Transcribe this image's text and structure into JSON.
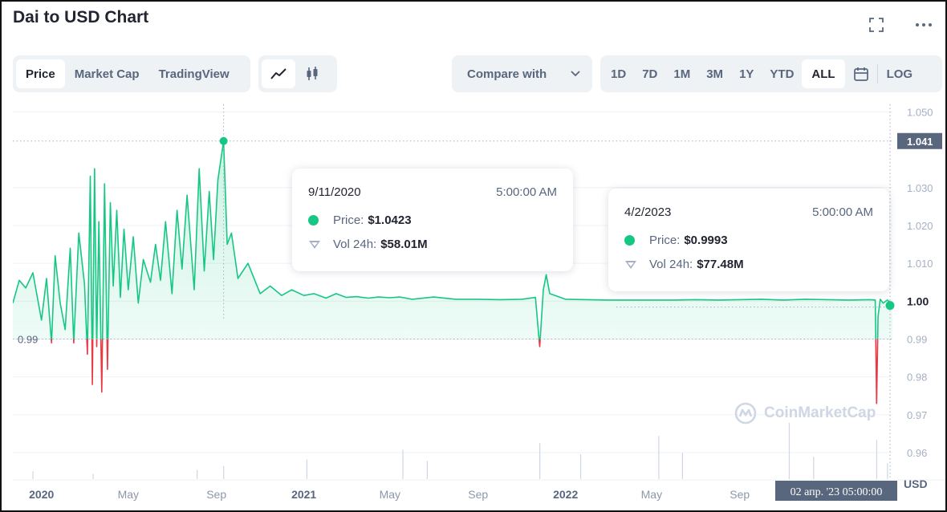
{
  "header": {
    "title": "Dai to USD Chart"
  },
  "icons": {
    "fullscreen": "fullscreen-icon",
    "more": "more-options-icon",
    "line": "line-chart-icon",
    "candle": "candlestick-icon",
    "calendar": "calendar-icon",
    "chevron": "chevron-down-icon",
    "watermark": "coinmarketcap-logo-icon"
  },
  "view_tabs": [
    {
      "label": "Price",
      "active": true
    },
    {
      "label": "Market Cap",
      "active": false
    },
    {
      "label": "TradingView",
      "active": false
    }
  ],
  "compare": {
    "label": "Compare with"
  },
  "ranges": [
    {
      "label": "1D",
      "active": false
    },
    {
      "label": "7D",
      "active": false
    },
    {
      "label": "1M",
      "active": false
    },
    {
      "label": "3M",
      "active": false
    },
    {
      "label": "1Y",
      "active": false
    },
    {
      "label": "YTD",
      "active": false
    },
    {
      "label": "ALL",
      "active": true
    }
  ],
  "log_label": "LOG",
  "tooltips": [
    {
      "date": "9/11/2020",
      "time": "5:00:00 AM",
      "price_label": "Price:",
      "price": "$1.0423",
      "vol_label": "Vol 24h:",
      "vol": "$58.01M"
    },
    {
      "date": "4/2/2023",
      "time": "5:00:00 AM",
      "price_label": "Price:",
      "price": "$0.9993",
      "vol_label": "Vol 24h:",
      "vol": "$77.48M"
    }
  ],
  "watermark": "CoinMarketCap",
  "colors": {
    "up": "#16c784",
    "down": "#ea3943",
    "axis_text": "#58667e",
    "label_bg": "#58667e"
  },
  "chart_data": {
    "type": "area",
    "baseline": 0.99,
    "baseline_label": "0.99",
    "ylim": [
      0.953,
      1.052
    ],
    "y_ticks": [
      "1.050",
      "1.030",
      "1.020",
      "1.010",
      "1.000",
      "0.99",
      "0.98",
      "0.97",
      "0.96"
    ],
    "y_tick_values": [
      1.05,
      1.03,
      1.02,
      1.01,
      1.0,
      0.99,
      0.98,
      0.97,
      0.96
    ],
    "ylabel": "USD",
    "x_tick_labels": [
      {
        "label": "2020",
        "x": "2020-01-01",
        "bold": true
      },
      {
        "label": "May",
        "x": "2020-05-01",
        "bold": false
      },
      {
        "label": "Sep",
        "x": "2020-09-01",
        "bold": false
      },
      {
        "label": "2021",
        "x": "2021-01-01",
        "bold": true
      },
      {
        "label": "May",
        "x": "2021-05-01",
        "bold": false
      },
      {
        "label": "Sep",
        "x": "2021-09-01",
        "bold": false
      },
      {
        "label": "2022",
        "x": "2022-01-01",
        "bold": true
      },
      {
        "label": "May",
        "x": "2022-05-01",
        "bold": false
      },
      {
        "label": "Sep",
        "x": "2022-09-01",
        "bold": false
      }
    ],
    "crosshair_labels": {
      "price_high": "1.041",
      "price_current": "1.00",
      "date": "02 апр. '23  05:00:00"
    },
    "markers": [
      {
        "x": "2020-09-11",
        "y": 1.0423
      },
      {
        "x": "2023-04-02",
        "y": 0.9993
      }
    ],
    "x": [
      "2019-11-22",
      "2019-12-01",
      "2019-12-10",
      "2019-12-20",
      "2020-01-01",
      "2020-01-08",
      "2020-01-15",
      "2020-01-20",
      "2020-01-27",
      "2020-02-03",
      "2020-02-10",
      "2020-02-15",
      "2020-02-22",
      "2020-03-01",
      "2020-03-05",
      "2020-03-09",
      "2020-03-12",
      "2020-03-15",
      "2020-03-18",
      "2020-03-21",
      "2020-03-25",
      "2020-03-29",
      "2020-04-02",
      "2020-04-06",
      "2020-04-10",
      "2020-04-15",
      "2020-04-20",
      "2020-04-25",
      "2020-05-01",
      "2020-05-08",
      "2020-05-15",
      "2020-05-22",
      "2020-06-01",
      "2020-06-08",
      "2020-06-15",
      "2020-06-22",
      "2020-07-01",
      "2020-07-08",
      "2020-07-15",
      "2020-07-22",
      "2020-08-01",
      "2020-08-08",
      "2020-08-15",
      "2020-08-22",
      "2020-08-28",
      "2020-09-03",
      "2020-09-11",
      "2020-09-16",
      "2020-09-22",
      "2020-10-01",
      "2020-10-15",
      "2020-11-01",
      "2020-11-15",
      "2020-12-01",
      "2020-12-15",
      "2021-01-01",
      "2021-01-15",
      "2021-02-01",
      "2021-02-15",
      "2021-03-01",
      "2021-03-15",
      "2021-04-01",
      "2021-04-15",
      "2021-05-01",
      "2021-05-15",
      "2021-06-01",
      "2021-07-01",
      "2021-08-01",
      "2021-09-01",
      "2021-10-01",
      "2021-11-01",
      "2021-11-20",
      "2021-11-26",
      "2021-12-01",
      "2021-12-05",
      "2021-12-10",
      "2022-01-01",
      "2022-02-01",
      "2022-03-01",
      "2022-04-01",
      "2022-05-01",
      "2022-06-01",
      "2022-07-01",
      "2022-08-01",
      "2022-09-01",
      "2022-10-01",
      "2022-11-01",
      "2022-12-01",
      "2023-01-01",
      "2023-02-01",
      "2023-03-01",
      "2023-03-09",
      "2023-03-11",
      "2023-03-13",
      "2023-03-16",
      "2023-03-20",
      "2023-03-26",
      "2023-04-02"
    ],
    "values": [
      0.9995,
      1.0055,
      1.0035,
      1.0075,
      0.995,
      1.006,
      0.989,
      1.012,
      0.9995,
      0.9925,
      1.014,
      0.989,
      1.018,
      1.0045,
      0.986,
      1.033,
      0.978,
      1.035,
      0.988,
      1.021,
      0.976,
      1.031,
      0.982,
      1.026,
      1.004,
      1.024,
      1.001,
      1.019,
      1.003,
      1.017,
      0.9995,
      1.011,
      1.005,
      1.015,
      1.0055,
      1.021,
      1.002,
      1.024,
      1.0085,
      1.028,
      1.003,
      1.035,
      1.008,
      1.029,
      1.011,
      1.032,
      1.0423,
      1.015,
      1.018,
      1.006,
      1.01,
      1.002,
      1.004,
      1.0015,
      1.003,
      1.0015,
      1.002,
      1.0008,
      1.002,
      1.001,
      1.0012,
      1.0008,
      1.0011,
      1.0009,
      1.0011,
      1.0005,
      1.0011,
      1.0005,
      1.0005,
      1.0004,
      1.0005,
      1.001,
      0.988,
      1.003,
      1.007,
      1.002,
      1.0005,
      1.0004,
      1.0003,
      1.0003,
      1.0003,
      1.0003,
      1.0004,
      1.0003,
      1.0004,
      1.0005,
      1.0003,
      1.0005,
      1.0004,
      1.0003,
      1.0004,
      1.0003,
      0.973,
      0.996,
      1.0005,
      0.9995,
      1.0003,
      0.9993
    ],
    "volume_x": [
      "2019-12-20",
      "2020-03-13",
      "2020-08-05",
      "2020-09-11",
      "2021-01-05",
      "2021-05-19",
      "2021-06-22",
      "2021-11-26",
      "2022-01-22",
      "2022-05-11",
      "2022-06-13",
      "2022-11-09",
      "2022-12-13",
      "2023-03-11",
      "2023-03-26"
    ],
    "volume_values": [
      12,
      8,
      14,
      20,
      30,
      45,
      28,
      55,
      38,
      66,
      40,
      86,
      34,
      60,
      24
    ],
    "volume_unit": "relative"
  }
}
